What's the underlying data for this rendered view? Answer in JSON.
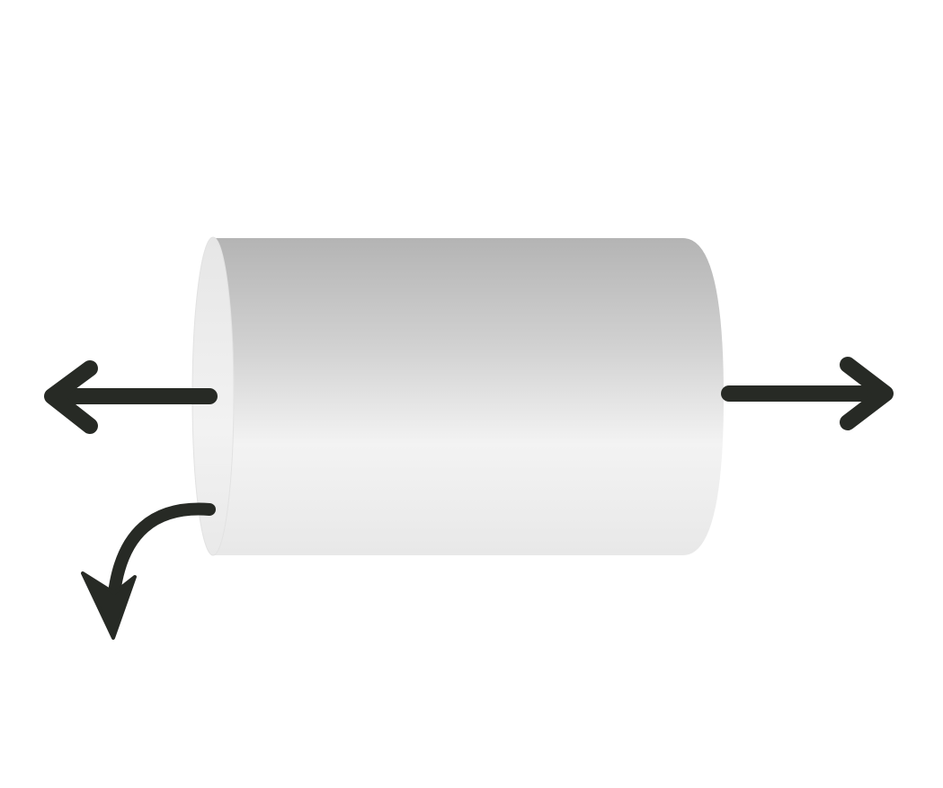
{
  "diagram": {
    "subject": "cylinder",
    "arrows": [
      {
        "name": "left-arrow",
        "direction": "left"
      },
      {
        "name": "right-arrow",
        "direction": "right"
      },
      {
        "name": "curved-arrow",
        "direction": "down-left"
      }
    ]
  },
  "colors": {
    "background": "#ffffff",
    "arrow": "#272a25",
    "cylinder_light": "#f4f4f4",
    "cylinder_mid": "#dcdcdc",
    "cylinder_dark": "#b4b4b4",
    "cylinder_cap": "#ededed",
    "cylinder_edge": "#e2e2e2"
  }
}
